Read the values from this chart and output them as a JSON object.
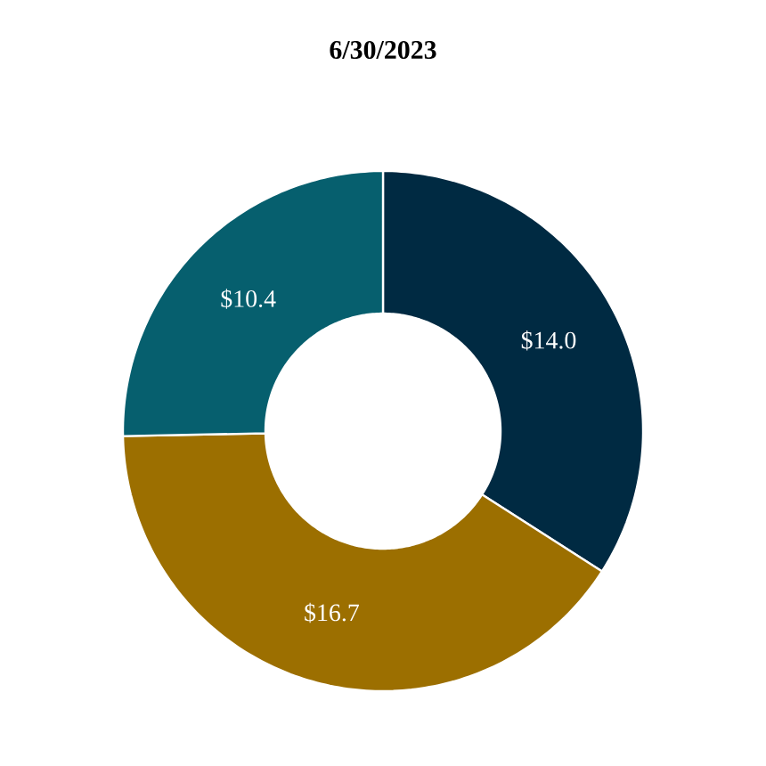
{
  "chart_data": {
    "type": "donut",
    "title": "6/30/2023",
    "categories": [
      null,
      null,
      null
    ],
    "values": [
      14.0,
      16.7,
      10.4
    ],
    "colors": [
      "#002a42",
      "#9c6f00",
      "#065f6e"
    ],
    "value_labels": [
      "$14.0",
      "$16.7",
      "$10.4"
    ]
  }
}
